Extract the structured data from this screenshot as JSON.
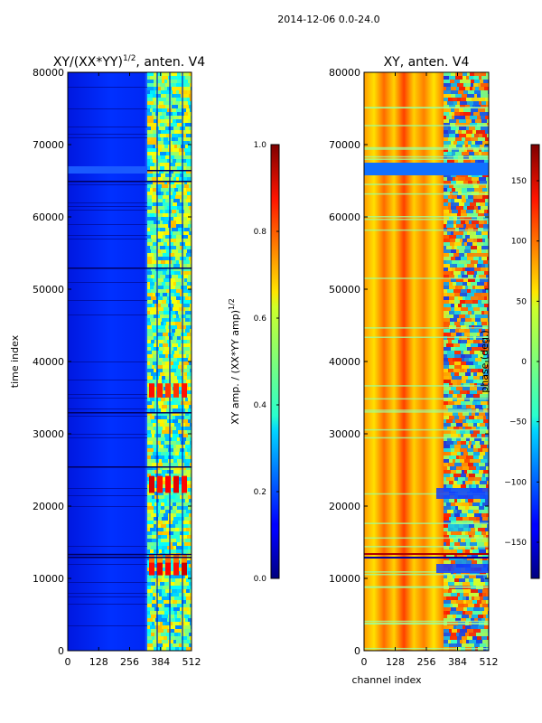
{
  "suptitle": "2014-12-06 0.0-24.0",
  "chart_data": [
    {
      "type": "heatmap",
      "title": "XY/(XX*YY)",
      "title_exponent": "1/2",
      "title_suffix": ", anten. V4",
      "ylabel": "time index",
      "xlabel": "",
      "xlim": [
        0,
        512
      ],
      "ylim": [
        0,
        80000
      ],
      "xticks": [
        0,
        128,
        256,
        384,
        512
      ],
      "yticks": [
        0,
        10000,
        20000,
        30000,
        40000,
        50000,
        60000,
        70000,
        80000
      ],
      "colorbar": {
        "label": "XY amp. / (XX*YY amp)",
        "label_exponent": "1/2",
        "range": [
          0.0,
          1.0
        ],
        "ticks": [
          "0.0",
          "0.2",
          "0.4",
          "0.6",
          "0.8",
          "1.0"
        ]
      },
      "colormap": "jet",
      "grid": false
    },
    {
      "type": "heatmap",
      "title": "XY, anten. V4",
      "xlabel": "channel index",
      "ylabel": "",
      "xlim": [
        0,
        512
      ],
      "ylim": [
        0,
        80000
      ],
      "xticks": [
        0,
        128,
        256,
        384,
        512
      ],
      "yticks": [
        0,
        10000,
        20000,
        30000,
        40000,
        50000,
        60000,
        70000,
        80000
      ],
      "colorbar": {
        "label": "phase (deg.)",
        "range": [
          -180,
          180
        ],
        "ticks": [
          "−150",
          "−100",
          "−50",
          "0",
          "50",
          "100",
          "150"
        ]
      },
      "colormap": "jet",
      "grid": false
    }
  ]
}
